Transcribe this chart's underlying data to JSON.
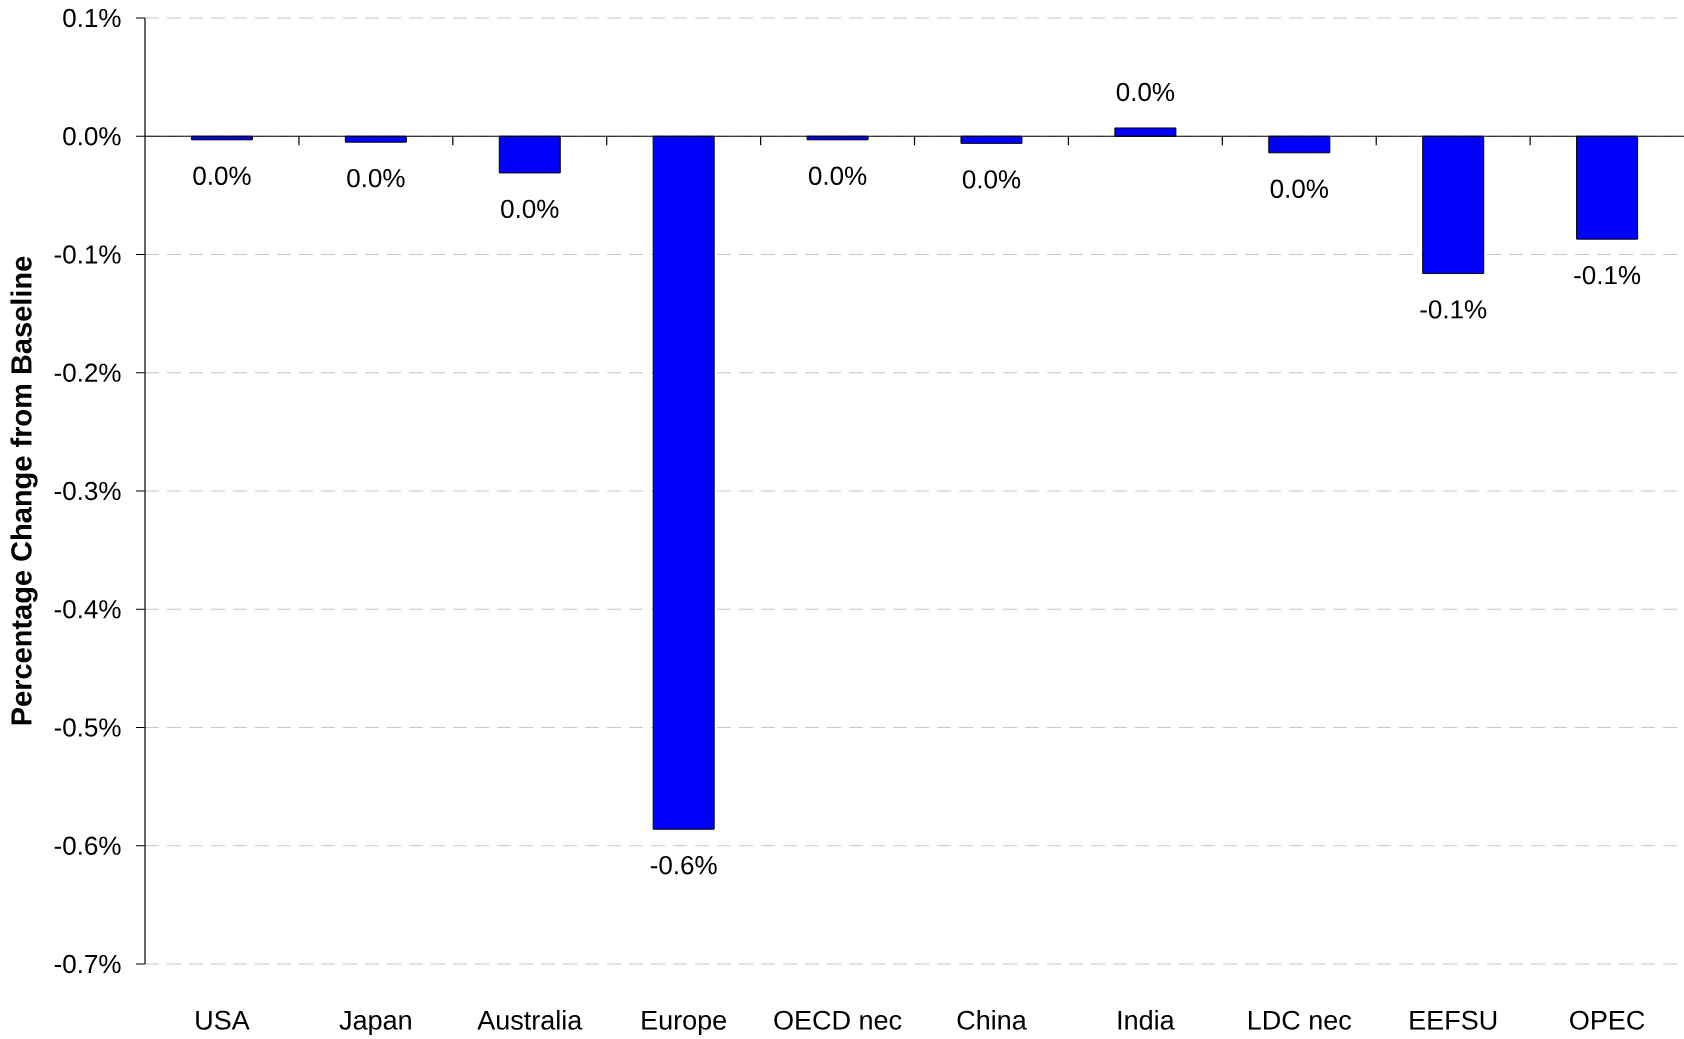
{
  "chart_data": {
    "type": "bar",
    "ylabel": "Percentage Change from Baseline",
    "categories": [
      "USA",
      "Japan",
      "Australia",
      "Europe",
      "OECD nec",
      "China",
      "India",
      "LDC nec",
      "EEFSU",
      "OPEC"
    ],
    "values": [
      -0.003,
      -0.005,
      -0.031,
      -0.586,
      -0.003,
      -0.006,
      0.007,
      -0.014,
      -0.116,
      -0.087
    ],
    "value_labels": [
      "0.0%",
      "0.0%",
      "0.0%",
      "-0.6%",
      "0.0%",
      "0.0%",
      "0.0%",
      "0.0%",
      "-0.1%",
      "-0.1%"
    ],
    "color": "#0000ff",
    "ylim": [
      -0.7,
      0.1
    ],
    "yticks": [
      {
        "value": -0.7,
        "label": "-0.7%"
      },
      {
        "value": -0.6,
        "label": "-0.6%"
      },
      {
        "value": -0.5,
        "label": "-0.5%"
      },
      {
        "value": -0.4,
        "label": "-0.4%"
      },
      {
        "value": -0.3,
        "label": "-0.3%"
      },
      {
        "value": -0.2,
        "label": "-0.2%"
      },
      {
        "value": -0.1,
        "label": "-0.1%"
      },
      {
        "value": 0,
        "label": "0.0%"
      },
      {
        "value": 0.1,
        "label": "0.1%"
      }
    ],
    "grid": "y"
  }
}
